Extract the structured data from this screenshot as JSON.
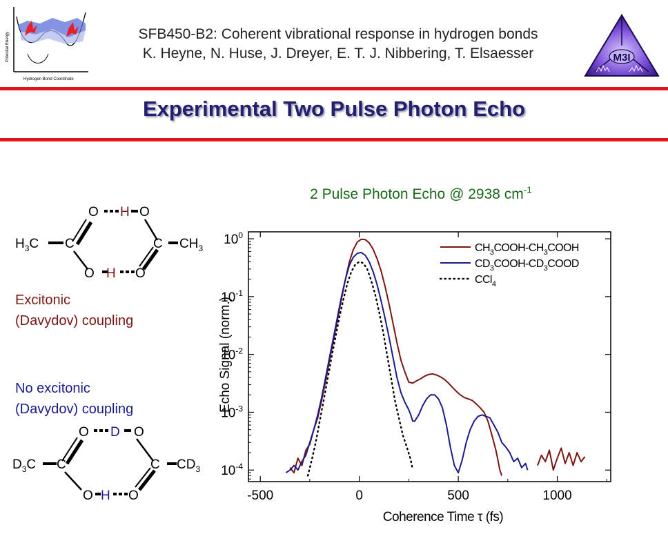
{
  "header": {
    "line1": "SFB450-B2: Coherent vibrational response in hydrogen bonds",
    "line2": "K. Heyne, N. Huse, J. Dreyer, E. T. J. Nibbering, T. Elsaesser",
    "logo_text": "M3I",
    "inset_ylabel": "Potential Energy",
    "inset_xlabel": "Hydrogen Bond Coordinate"
  },
  "slide_title": "Experimental  Two Pulse Photon Echo",
  "molecule_top": {
    "o_tl": "O",
    "h_top": "H",
    "o_tr": "O",
    "left_group": "H",
    "left_sub": "3",
    "left_c": "C",
    "c_left": "C",
    "c_right": "C",
    "right_group": "CH",
    "right_sub": "3",
    "o_bl": "O",
    "h_bottom": "H",
    "o_br": "O"
  },
  "caption_top": {
    "line1": "Excitonic",
    "line2": "(Davydov) coupling"
  },
  "caption_bottom": {
    "line1": "No excitonic",
    "line2": "(Davydov) coupling"
  },
  "molecule_bottom": {
    "o_tl": "O",
    "d_top": "D",
    "o_tr": "O",
    "left_group": "D",
    "left_sub": "3",
    "left_c": "C",
    "c_left": "C",
    "c_right": "C",
    "right_group": "CD",
    "right_sub": "3",
    "o_bl": "O",
    "h_bottom": "H",
    "o_br": "O"
  },
  "colors": {
    "accent_red": "#e0141c",
    "title_navy": "#231f6e",
    "title_green": "#1a6b1a",
    "series_dimer": "#7a1512",
    "series_deut": "#1a1a8c",
    "series_ccl4": "#000000"
  },
  "chart_data": {
    "type": "line",
    "title": "2 Pulse Photon Echo @ 2938 cm",
    "title_sup": "-1",
    "xlabel": "Coherence Time τ (fs)",
    "ylabel": "Echo Signal (norm.)",
    "xlim": [
      -560,
      1270
    ],
    "ylim_log10": [
      -4.2,
      0.12
    ],
    "x_ticks": [
      -500,
      0,
      500,
      1000
    ],
    "x_tick_labels": [
      "-500",
      "0",
      "500",
      "1000"
    ],
    "y_ticks_exp": [
      0,
      -1,
      -2,
      -3,
      -4
    ],
    "y_tick_base": "10",
    "y_tick_exps": [
      "0",
      "-1",
      "-2",
      "-3",
      "-4"
    ],
    "series": [
      {
        "name": "CH3COOH-CH3COOH",
        "legend": [
          "CH",
          "3",
          "COOH-CH",
          "3",
          "COOH"
        ],
        "color": "#7a1512",
        "dash": "solid",
        "x": [
          -350,
          -330,
          -310,
          -290,
          -270,
          -250,
          -230,
          -210,
          -190,
          -170,
          -150,
          -130,
          -110,
          -90,
          -70,
          -50,
          -30,
          -10,
          10,
          30,
          50,
          70,
          90,
          110,
          130,
          150,
          170,
          190,
          210,
          230,
          250,
          270,
          290,
          310,
          330,
          350,
          370,
          390,
          410,
          430,
          450,
          470,
          490,
          510,
          530,
          550,
          570,
          590,
          610,
          630,
          650,
          670,
          690,
          700,
          710,
          720
        ],
        "y": [
          0.00011,
          9e-05,
          0.00016,
          0.00012,
          0.00022,
          0.00028,
          0.0005,
          0.0008,
          0.0016,
          0.0035,
          0.008,
          0.018,
          0.04,
          0.09,
          0.2,
          0.4,
          0.65,
          0.88,
          0.98,
          0.97,
          0.85,
          0.66,
          0.45,
          0.28,
          0.15,
          0.075,
          0.035,
          0.016,
          0.008,
          0.005,
          0.0033,
          0.0032,
          0.0035,
          0.0038,
          0.0042,
          0.0045,
          0.0046,
          0.0044,
          0.0041,
          0.0037,
          0.0032,
          0.0027,
          0.0023,
          0.002,
          0.0018,
          0.0017,
          0.0016,
          0.0014,
          0.0012,
          0.001,
          0.0007,
          0.0004,
          0.00022,
          0.00015,
          0.0001,
          8e-05
        ]
      },
      {
        "name": "CD3COOH-CD3COOD",
        "legend": [
          "CD",
          "3",
          "COOH-CD",
          "3",
          "COOD"
        ],
        "color": "#1a1a8c",
        "dash": "solid",
        "x": [
          -370,
          -350,
          -330,
          -310,
          -290,
          -270,
          -250,
          -230,
          -210,
          -190,
          -170,
          -150,
          -130,
          -110,
          -90,
          -70,
          -50,
          -30,
          -10,
          10,
          30,
          50,
          70,
          90,
          110,
          130,
          150,
          170,
          190,
          210,
          230,
          250,
          260,
          270,
          280,
          300,
          320,
          340,
          360,
          380,
          400,
          420,
          440,
          460,
          480,
          500,
          520,
          540,
          560,
          580,
          600,
          620,
          640,
          660,
          680,
          700,
          720,
          740,
          760,
          780,
          800,
          820,
          840,
          850
        ],
        "y": [
          9e-05,
          0.0001,
          0.00012,
          0.0001,
          0.00014,
          0.00018,
          0.0003,
          0.0005,
          0.0009,
          0.0018,
          0.004,
          0.009,
          0.02,
          0.045,
          0.1,
          0.2,
          0.35,
          0.48,
          0.56,
          0.58,
          0.52,
          0.4,
          0.27,
          0.16,
          0.085,
          0.042,
          0.02,
          0.009,
          0.004,
          0.0022,
          0.0015,
          0.0011,
          0.0009,
          0.0007,
          0.0007,
          0.0009,
          0.0013,
          0.0017,
          0.002,
          0.002,
          0.0017,
          0.0012,
          0.0006,
          0.00025,
          0.00012,
          9e-05,
          0.00015,
          0.0003,
          0.0005,
          0.0007,
          0.00085,
          0.0009,
          0.00085,
          0.0008,
          0.0006,
          0.00045,
          0.0003,
          0.00025,
          0.0002,
          0.00014,
          0.00016,
          0.00011,
          0.00013,
          0.0001
        ]
      },
      {
        "name": "CCl4",
        "legend": [
          "CCl",
          "4",
          "",
          "",
          ""
        ],
        "color": "#000000",
        "dash": "dotted",
        "x": [
          -260,
          -240,
          -220,
          -200,
          -180,
          -160,
          -140,
          -120,
          -100,
          -80,
          -60,
          -40,
          -20,
          0,
          20,
          40,
          60,
          80,
          100,
          120,
          140,
          160,
          180,
          200,
          220,
          240,
          260,
          270
        ],
        "y": [
          8e-05,
          0.00015,
          0.0003,
          0.0007,
          0.0016,
          0.0038,
          0.009,
          0.02,
          0.045,
          0.09,
          0.17,
          0.27,
          0.36,
          0.4,
          0.38,
          0.3,
          0.19,
          0.11,
          0.055,
          0.025,
          0.01,
          0.004,
          0.0016,
          0.0008,
          0.0004,
          0.00025,
          0.00015,
          0.0001
        ]
      },
      {
        "name": "CH3COOH-CH3COOH tail",
        "legend": null,
        "color": "#7a1512",
        "dash": "solid",
        "x": [
          900,
          920,
          940,
          960,
          980,
          1000,
          1020,
          1040,
          1060,
          1080,
          1100,
          1120,
          1140
        ],
        "y": [
          0.00012,
          0.00018,
          0.00014,
          0.00022,
          0.0001,
          0.00016,
          0.00024,
          0.00013,
          0.0002,
          0.00012,
          0.0002,
          0.00014,
          0.00017
        ]
      }
    ]
  }
}
